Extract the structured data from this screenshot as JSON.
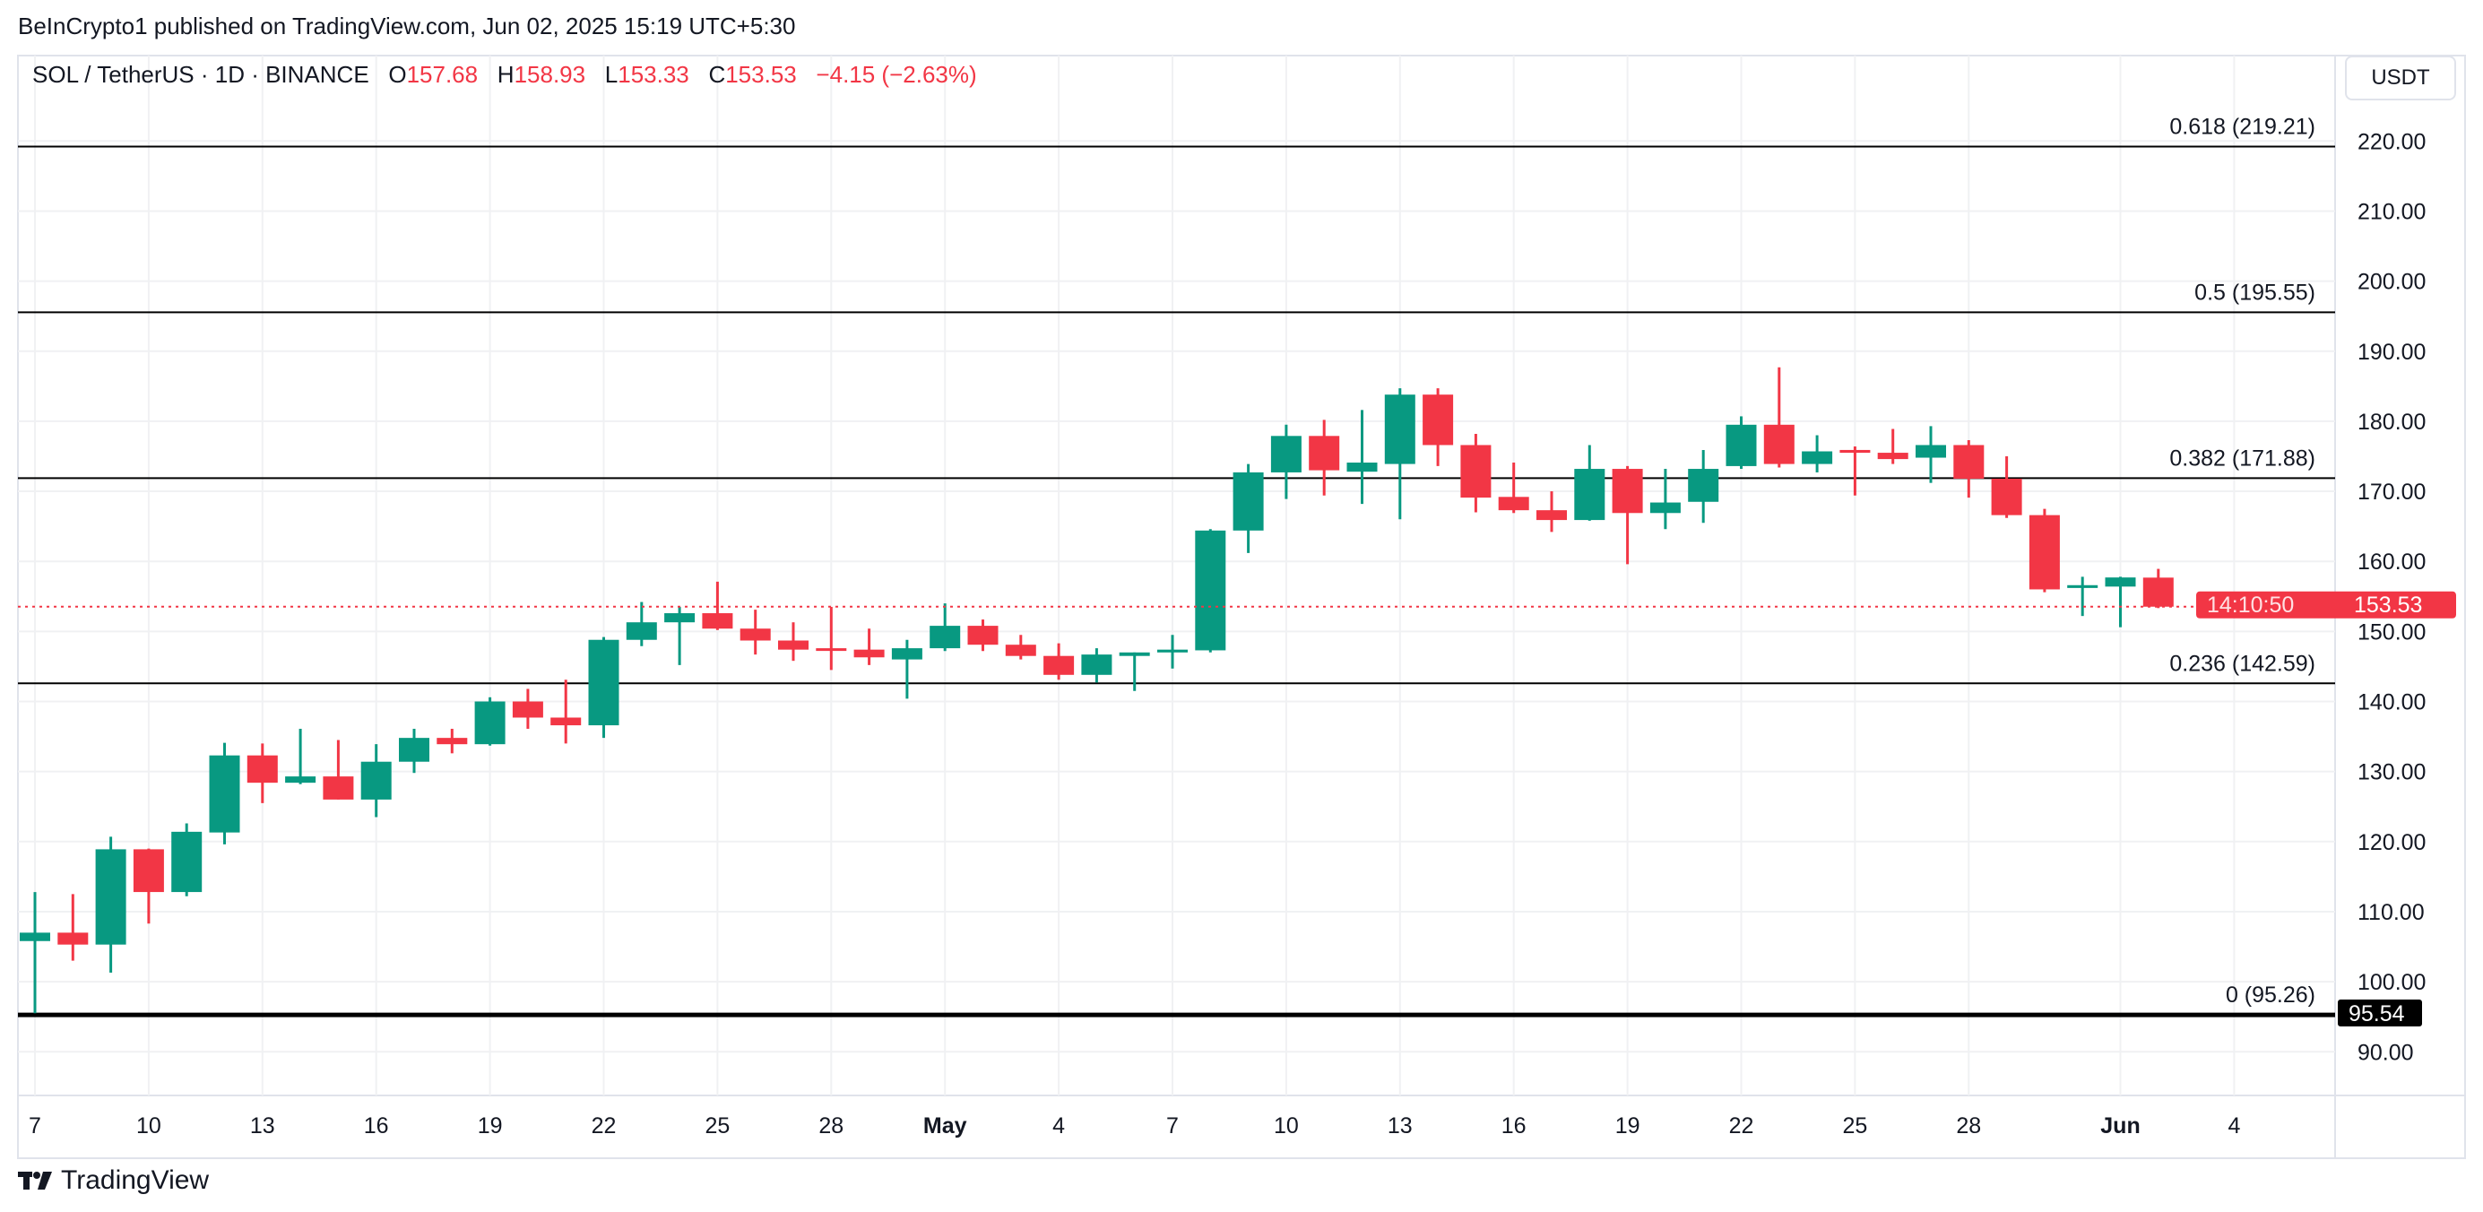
{
  "header": {
    "published": "BeInCrypto1 published on TradingView.com, Jun 02, 2025 15:19 UTC+5:30",
    "symbol": "SOL / TetherUS · 1D · BINANCE",
    "o_label": "O",
    "o_value": "157.68",
    "h_label": "H",
    "h_value": "158.93",
    "l_label": "L",
    "l_value": "153.33",
    "c_label": "C",
    "c_value": "153.53",
    "change": "−4.15 (−2.63%)"
  },
  "currency_button": "USDT",
  "brand": "TradingView",
  "colors": {
    "up": "#089981",
    "down": "#F23645",
    "fib": "#000000",
    "grid": "#f0f1f3"
  },
  "chart_data": {
    "type": "candlestick",
    "ylim": [
      85,
      225
    ],
    "y_ticks": [
      "90.00",
      "100.00",
      "110.00",
      "120.00",
      "130.00",
      "140.00",
      "150.00",
      "160.00",
      "170.00",
      "180.00",
      "190.00",
      "200.00",
      "210.00",
      "220.00"
    ],
    "x_ticks": [
      {
        "date": "2025-04-07",
        "label": "7"
      },
      {
        "date": "2025-04-10",
        "label": "10"
      },
      {
        "date": "2025-04-13",
        "label": "13"
      },
      {
        "date": "2025-04-16",
        "label": "16"
      },
      {
        "date": "2025-04-19",
        "label": "19"
      },
      {
        "date": "2025-04-22",
        "label": "22"
      },
      {
        "date": "2025-04-25",
        "label": "25"
      },
      {
        "date": "2025-04-28",
        "label": "28"
      },
      {
        "date": "2025-05-01",
        "label": "May",
        "bold": true
      },
      {
        "date": "2025-05-04",
        "label": "4"
      },
      {
        "date": "2025-05-07",
        "label": "7"
      },
      {
        "date": "2025-05-10",
        "label": "10"
      },
      {
        "date": "2025-05-13",
        "label": "13"
      },
      {
        "date": "2025-05-16",
        "label": "16"
      },
      {
        "date": "2025-05-19",
        "label": "19"
      },
      {
        "date": "2025-05-22",
        "label": "22"
      },
      {
        "date": "2025-05-25",
        "label": "25"
      },
      {
        "date": "2025-05-28",
        "label": "28"
      },
      {
        "date": "2025-06-01",
        "label": "Jun",
        "bold": true
      },
      {
        "date": "2025-06-04",
        "label": "4"
      }
    ],
    "candles": [
      {
        "d": "2025-04-07",
        "o": 105.8,
        "h": 112.8,
        "l": 95.5,
        "c": 107.0
      },
      {
        "d": "2025-04-08",
        "o": 107.0,
        "h": 112.5,
        "l": 103.0,
        "c": 105.3
      },
      {
        "d": "2025-04-09",
        "o": 105.3,
        "h": 120.7,
        "l": 101.3,
        "c": 118.9
      },
      {
        "d": "2025-04-10",
        "o": 118.9,
        "h": 119.0,
        "l": 108.3,
        "c": 112.8
      },
      {
        "d": "2025-04-11",
        "o": 112.8,
        "h": 122.6,
        "l": 112.2,
        "c": 121.4
      },
      {
        "d": "2025-04-12",
        "o": 121.3,
        "h": 134.1,
        "l": 119.6,
        "c": 132.3
      },
      {
        "d": "2025-04-13",
        "o": 132.3,
        "h": 134.0,
        "l": 125.5,
        "c": 128.4
      },
      {
        "d": "2025-04-14",
        "o": 128.4,
        "h": 136.1,
        "l": 128.2,
        "c": 129.3
      },
      {
        "d": "2025-04-15",
        "o": 129.3,
        "h": 134.5,
        "l": 126.0,
        "c": 126.0
      },
      {
        "d": "2025-04-16",
        "o": 126.0,
        "h": 133.9,
        "l": 123.5,
        "c": 131.4
      },
      {
        "d": "2025-04-17",
        "o": 131.4,
        "h": 136.1,
        "l": 129.8,
        "c": 134.8
      },
      {
        "d": "2025-04-18",
        "o": 134.8,
        "h": 136.1,
        "l": 132.6,
        "c": 133.9
      },
      {
        "d": "2025-04-19",
        "o": 133.9,
        "h": 140.6,
        "l": 133.7,
        "c": 140.0
      },
      {
        "d": "2025-04-20",
        "o": 140.0,
        "h": 141.8,
        "l": 136.1,
        "c": 137.7
      },
      {
        "d": "2025-04-21",
        "o": 137.7,
        "h": 143.1,
        "l": 134.0,
        "c": 136.6
      },
      {
        "d": "2025-04-22",
        "o": 136.6,
        "h": 149.2,
        "l": 134.8,
        "c": 148.8
      },
      {
        "d": "2025-04-23",
        "o": 148.8,
        "h": 154.2,
        "l": 147.9,
        "c": 151.3
      },
      {
        "d": "2025-04-24",
        "o": 151.3,
        "h": 153.5,
        "l": 145.2,
        "c": 152.6
      },
      {
        "d": "2025-04-25",
        "o": 152.6,
        "h": 157.1,
        "l": 150.2,
        "c": 150.4
      },
      {
        "d": "2025-04-26",
        "o": 150.4,
        "h": 153.1,
        "l": 146.7,
        "c": 148.7
      },
      {
        "d": "2025-04-27",
        "o": 148.7,
        "h": 151.3,
        "l": 145.8,
        "c": 147.4
      },
      {
        "d": "2025-04-28",
        "o": 147.6,
        "h": 153.5,
        "l": 144.5,
        "c": 147.3
      },
      {
        "d": "2025-04-29",
        "o": 147.4,
        "h": 150.4,
        "l": 145.2,
        "c": 146.3
      },
      {
        "d": "2025-04-30",
        "o": 146.0,
        "h": 148.8,
        "l": 140.4,
        "c": 147.6
      },
      {
        "d": "2025-05-01",
        "o": 147.6,
        "h": 154.0,
        "l": 147.2,
        "c": 150.8
      },
      {
        "d": "2025-05-02",
        "o": 150.8,
        "h": 151.7,
        "l": 147.2,
        "c": 148.1
      },
      {
        "d": "2025-05-03",
        "o": 148.1,
        "h": 149.5,
        "l": 146.0,
        "c": 146.5
      },
      {
        "d": "2025-05-04",
        "o": 146.5,
        "h": 148.3,
        "l": 143.1,
        "c": 143.8
      },
      {
        "d": "2025-05-05",
        "o": 143.8,
        "h": 147.6,
        "l": 142.7,
        "c": 146.7
      },
      {
        "d": "2025-05-06",
        "o": 146.5,
        "h": 147.0,
        "l": 141.5,
        "c": 147.0
      },
      {
        "d": "2025-05-07",
        "o": 147.0,
        "h": 149.5,
        "l": 144.7,
        "c": 147.4
      },
      {
        "d": "2025-05-08",
        "o": 147.3,
        "h": 164.6,
        "l": 147.0,
        "c": 164.4
      },
      {
        "d": "2025-05-09",
        "o": 164.4,
        "h": 173.9,
        "l": 161.2,
        "c": 172.7
      },
      {
        "d": "2025-05-10",
        "o": 172.7,
        "h": 179.5,
        "l": 168.9,
        "c": 177.9
      },
      {
        "d": "2025-05-11",
        "o": 177.9,
        "h": 180.2,
        "l": 169.4,
        "c": 173.0
      },
      {
        "d": "2025-05-12",
        "o": 172.8,
        "h": 181.6,
        "l": 168.2,
        "c": 174.1
      },
      {
        "d": "2025-05-13",
        "o": 173.9,
        "h": 184.7,
        "l": 166.0,
        "c": 183.8
      },
      {
        "d": "2025-05-14",
        "o": 183.8,
        "h": 184.7,
        "l": 173.6,
        "c": 176.6
      },
      {
        "d": "2025-05-15",
        "o": 176.6,
        "h": 178.2,
        "l": 167.0,
        "c": 169.1
      },
      {
        "d": "2025-05-16",
        "o": 169.2,
        "h": 174.1,
        "l": 166.9,
        "c": 167.3
      },
      {
        "d": "2025-05-17",
        "o": 167.3,
        "h": 170.0,
        "l": 164.2,
        "c": 165.9
      },
      {
        "d": "2025-05-18",
        "o": 165.9,
        "h": 176.6,
        "l": 165.8,
        "c": 173.2
      },
      {
        "d": "2025-05-19",
        "o": 173.2,
        "h": 173.6,
        "l": 159.6,
        "c": 166.9
      },
      {
        "d": "2025-05-20",
        "o": 166.9,
        "h": 173.2,
        "l": 164.6,
        "c": 168.4
      },
      {
        "d": "2025-05-21",
        "o": 168.5,
        "h": 175.9,
        "l": 165.5,
        "c": 173.2
      },
      {
        "d": "2025-05-22",
        "o": 173.6,
        "h": 180.7,
        "l": 173.2,
        "c": 179.5
      },
      {
        "d": "2025-05-23",
        "o": 179.5,
        "h": 187.7,
        "l": 173.4,
        "c": 173.9
      },
      {
        "d": "2025-05-24",
        "o": 173.9,
        "h": 178.0,
        "l": 172.7,
        "c": 175.7
      },
      {
        "d": "2025-05-25",
        "o": 175.9,
        "h": 176.4,
        "l": 169.4,
        "c": 175.5
      },
      {
        "d": "2025-05-26",
        "o": 175.5,
        "h": 178.9,
        "l": 173.9,
        "c": 174.6
      },
      {
        "d": "2025-05-27",
        "o": 174.8,
        "h": 179.3,
        "l": 171.2,
        "c": 176.6
      },
      {
        "d": "2025-05-28",
        "o": 176.6,
        "h": 177.3,
        "l": 169.1,
        "c": 171.8
      },
      {
        "d": "2025-05-29",
        "o": 171.8,
        "h": 175.0,
        "l": 166.2,
        "c": 166.6
      },
      {
        "d": "2025-05-30",
        "o": 166.6,
        "h": 167.5,
        "l": 155.6,
        "c": 156.0
      },
      {
        "d": "2025-05-31",
        "o": 156.2,
        "h": 157.8,
        "l": 152.2,
        "c": 156.6
      },
      {
        "d": "2025-06-01",
        "o": 156.4,
        "h": 157.8,
        "l": 150.6,
        "c": 157.7
      },
      {
        "d": "2025-06-02",
        "o": 157.68,
        "h": 158.93,
        "l": 153.33,
        "c": 153.53
      }
    ],
    "fib_levels": [
      {
        "price": 219.21,
        "label": "0.618 (219.21)"
      },
      {
        "price": 195.55,
        "label": "0.5 (195.55)"
      },
      {
        "price": 171.88,
        "label": "0.382 (171.88)"
      },
      {
        "price": 142.59,
        "label": "0.236 (142.59)"
      },
      {
        "price": 95.26,
        "label": "0 (95.26)",
        "bold": true
      }
    ],
    "last_price": {
      "price": 153.53,
      "label": "153.53",
      "countdown": "14:10:50"
    },
    "marker_label": {
      "price": 95.54,
      "label": "95.54"
    },
    "grid": true
  }
}
